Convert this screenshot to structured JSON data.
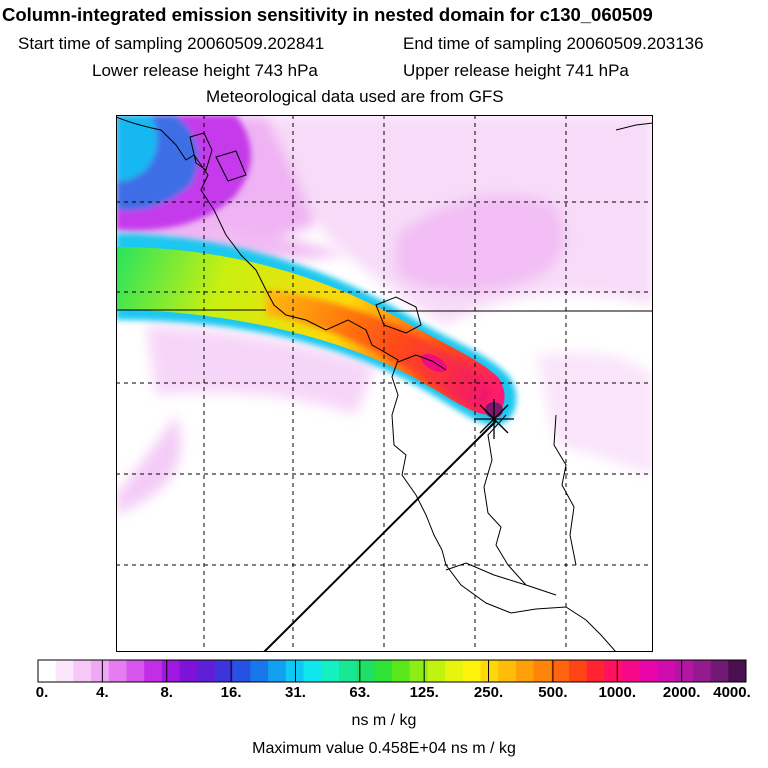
{
  "header": {
    "title": "Column-integrated emission sensitivity in nested domain for c130_060509",
    "start_label": "Start time of sampling 20060509.202841",
    "end_label": "End time of sampling 20060509.203136",
    "lower_label": "Lower release height  743 hPa",
    "upper_label": "Upper release height  741 hPa",
    "met_label": "Meteorological data used are from GFS"
  },
  "colorbar": {
    "labels": [
      "0.",
      "4.",
      "8.",
      "16.",
      "31.",
      "63.",
      "125.",
      "250.",
      "500.",
      "1000.",
      "2000.",
      "4000."
    ],
    "colors": [
      "#ffffff",
      "#fbe6fb",
      "#f6c8f7",
      "#f0a7f4",
      "#e57cf0",
      "#d655ec",
      "#c22ee8",
      "#a018e0",
      "#7d12d8",
      "#5f1fd6",
      "#3d34dc",
      "#2552e2",
      "#1877ea",
      "#12a0f0",
      "#10c8f4",
      "#10e6ee",
      "#14f0c2",
      "#18e894",
      "#1ee066",
      "#2ee236",
      "#58e81c",
      "#8cee14",
      "#c2f210",
      "#e6f40e",
      "#fff20c",
      "#ffd80a",
      "#ffbc08",
      "#ffa008",
      "#ff840a",
      "#ff640e",
      "#ff4416",
      "#ff2430",
      "#ff1060",
      "#f6088a",
      "#e806a8",
      "#d00cb0",
      "#b416a4",
      "#941a90",
      "#701a74",
      "#4a1050"
    ],
    "unit": "ns m / kg",
    "max_text": "Maximum value  0.458E+04 ns m / kg"
  }
}
